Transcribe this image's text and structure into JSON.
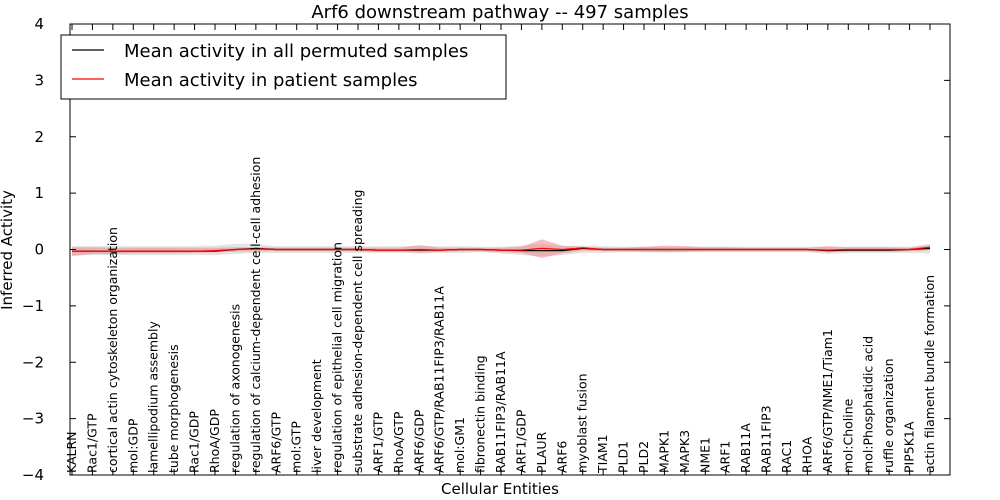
{
  "chart_data": {
    "type": "line",
    "title": "Arf6 downstream pathway -- 497 samples",
    "xlabel": "Cellular Entities",
    "ylabel": "Inferred Activity",
    "ylim": [
      -4,
      4
    ],
    "yticks": [
      -4,
      -3,
      -2,
      -1,
      0,
      1,
      2,
      3,
      4
    ],
    "ytick_labels": [
      "−4",
      "−3",
      "−2",
      "−1",
      "0",
      "1",
      "2",
      "3",
      "4"
    ],
    "legend_placement": "top-left",
    "categories": [
      "KALRN",
      "Rac1/GTP",
      "cortical actin cytoskeleton organization",
      "mol:GDP",
      "lamellipodium assembly",
      "tube morphogenesis",
      "Rac1/GDP",
      "RhoA/GDP",
      "regulation of axonogenesis",
      "regulation of calcium-dependent cell-cell adhesion",
      "ARF6/GTP",
      "mol:GTP",
      "liver development",
      "regulation of epithelial cell migration",
      "substrate adhesion-dependent cell spreading",
      "ARF1/GTP",
      "RhoA/GTP",
      "ARF6/GDP",
      "ARF6/GTP/RAB11FIP3/RAB11A",
      "mol:GM1",
      "fibronectin binding",
      "RAB11FIP3/RAB11A",
      "ARF1/GDP",
      "PLAUR",
      "ARF6",
      "myoblast fusion",
      "TIAM1",
      "PLD1",
      "PLD2",
      "MAPK1",
      "MAPK3",
      "NME1",
      "ARF1",
      "RAB11A",
      "RAB11FIP3",
      "RAC1",
      "RHOA",
      "ARF6/GTP/NME1/Tiam1",
      "mol:Choline",
      "mol:Phosphatidic acid",
      "ruffle organization",
      "PIP5K1A",
      "actin filament bundle formation"
    ],
    "series": [
      {
        "name": "Mean activity in all permuted samples",
        "color": "#000000",
        "band_color": "#d9d9d9",
        "values": [
          -0.03,
          -0.03,
          -0.03,
          -0.03,
          -0.03,
          -0.03,
          -0.03,
          -0.03,
          0.0,
          0.02,
          0.0,
          0.0,
          0.0,
          0.0,
          0.0,
          -0.01,
          -0.01,
          -0.01,
          -0.01,
          0.0,
          0.0,
          -0.01,
          -0.02,
          -0.02,
          -0.02,
          0.02,
          0.0,
          0.0,
          0.0,
          0.0,
          0.0,
          0.0,
          0.0,
          0.0,
          0.0,
          0.0,
          0.0,
          -0.02,
          -0.01,
          -0.01,
          -0.01,
          0.0,
          0.02
        ],
        "upper": [
          0.06,
          0.06,
          0.06,
          0.06,
          0.06,
          0.06,
          0.06,
          0.07,
          0.1,
          0.1,
          0.06,
          0.06,
          0.06,
          0.06,
          0.06,
          0.06,
          0.06,
          0.06,
          0.06,
          0.06,
          0.05,
          0.05,
          0.07,
          0.1,
          0.06,
          0.07,
          0.06,
          0.05,
          0.05,
          0.05,
          0.05,
          0.05,
          0.05,
          0.05,
          0.05,
          0.05,
          0.05,
          0.05,
          0.05,
          0.05,
          0.05,
          0.05,
          0.1
        ],
        "lower": [
          -0.1,
          -0.1,
          -0.1,
          -0.1,
          -0.1,
          -0.1,
          -0.1,
          -0.1,
          -0.08,
          -0.06,
          -0.06,
          -0.06,
          -0.06,
          -0.06,
          -0.06,
          -0.06,
          -0.06,
          -0.07,
          -0.06,
          -0.06,
          -0.05,
          -0.07,
          -0.1,
          -0.12,
          -0.1,
          -0.06,
          -0.06,
          -0.05,
          -0.05,
          -0.05,
          -0.05,
          -0.05,
          -0.05,
          -0.05,
          -0.05,
          -0.05,
          -0.05,
          -0.08,
          -0.06,
          -0.06,
          -0.06,
          -0.06,
          -0.07
        ]
      },
      {
        "name": "Mean activity in patient samples",
        "color": "#ff0000",
        "band_color": "#f08080",
        "values": [
          -0.03,
          -0.03,
          -0.03,
          -0.03,
          -0.03,
          -0.03,
          -0.03,
          -0.02,
          0.0,
          0.01,
          0.0,
          0.0,
          0.0,
          0.0,
          0.0,
          -0.01,
          -0.01,
          0.0,
          -0.01,
          0.0,
          0.0,
          -0.01,
          -0.01,
          0.02,
          0.0,
          0.03,
          0.0,
          0.0,
          0.0,
          0.0,
          0.0,
          0.0,
          0.0,
          0.0,
          0.0,
          0.0,
          0.0,
          -0.01,
          0.0,
          0.0,
          0.0,
          0.0,
          0.04
        ],
        "upper": [
          0.04,
          0.04,
          0.03,
          0.03,
          0.03,
          0.03,
          0.03,
          0.03,
          0.04,
          0.04,
          0.03,
          0.03,
          0.03,
          0.03,
          0.03,
          0.03,
          0.03,
          0.08,
          0.03,
          0.03,
          0.03,
          0.03,
          0.05,
          0.18,
          0.07,
          0.05,
          0.03,
          0.03,
          0.05,
          0.07,
          0.06,
          0.04,
          0.04,
          0.03,
          0.03,
          0.03,
          0.03,
          0.06,
          0.04,
          0.04,
          0.04,
          0.03,
          0.08
        ],
        "lower": [
          -0.12,
          -0.08,
          -0.08,
          -0.07,
          -0.07,
          -0.07,
          -0.06,
          -0.05,
          -0.04,
          -0.03,
          -0.03,
          -0.03,
          -0.03,
          -0.03,
          -0.03,
          -0.04,
          -0.04,
          -0.06,
          -0.04,
          -0.03,
          -0.03,
          -0.05,
          -0.06,
          -0.15,
          -0.07,
          -0.02,
          -0.03,
          -0.03,
          -0.04,
          -0.05,
          -0.04,
          -0.03,
          -0.03,
          -0.03,
          -0.03,
          -0.03,
          -0.03,
          -0.05,
          -0.04,
          -0.04,
          -0.04,
          -0.03,
          -0.01
        ]
      }
    ]
  }
}
